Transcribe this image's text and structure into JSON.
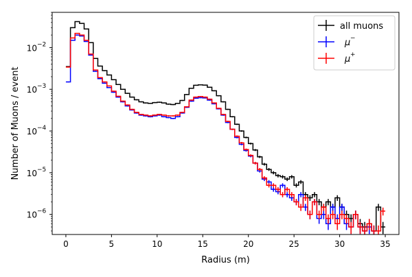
{
  "chart_data": {
    "type": "line",
    "subtype": "step-histogram-with-errorbars",
    "title": "",
    "xlabel": "Radius (m)",
    "ylabel": "Number of Muons / event",
    "xlim": [
      -1.5,
      36.5
    ],
    "ylim": [
      3.3e-07,
      0.07
    ],
    "yscale": "log",
    "grid": false,
    "legend_position": "top-right",
    "x_ticks": [
      0,
      5,
      10,
      15,
      20,
      25,
      30,
      35
    ],
    "x_tick_labels": [
      "0",
      "5",
      "10",
      "15",
      "20",
      "25",
      "30",
      "35"
    ],
    "y_ticks": [
      1e-06,
      1e-05,
      0.0001,
      0.001,
      0.01
    ],
    "y_tick_labels": [
      {
        "base": "10",
        "exp": "−6"
      },
      {
        "base": "10",
        "exp": "−5"
      },
      {
        "base": "10",
        "exp": "−4"
      },
      {
        "base": "10",
        "exp": "−3"
      },
      {
        "base": "10",
        "exp": "−2"
      }
    ],
    "bin_width": 0.5,
    "series": [
      {
        "name": "all muons",
        "legend_label": "all muons",
        "color": "#000000",
        "x": [
          0.0,
          0.5,
          1.0,
          1.5,
          2.0,
          2.5,
          3.0,
          3.5,
          4.0,
          4.5,
          5.0,
          5.5,
          6.0,
          6.5,
          7.0,
          7.5,
          8.0,
          8.5,
          9.0,
          9.5,
          10.0,
          10.5,
          11.0,
          11.5,
          12.0,
          12.5,
          13.0,
          13.5,
          14.0,
          14.5,
          15.0,
          15.5,
          16.0,
          16.5,
          17.0,
          17.5,
          18.0,
          18.5,
          19.0,
          19.5,
          20.0,
          20.5,
          21.0,
          21.5,
          22.0,
          22.5,
          23.0,
          23.5,
          24.0,
          24.5,
          25.0,
          25.5,
          26.0,
          26.5,
          27.0,
          27.5,
          28.0,
          28.5,
          29.0,
          29.5,
          30.0,
          30.5,
          31.0,
          31.5,
          32.0,
          32.5,
          33.0,
          33.5,
          34.0,
          34.5
        ],
        "values": [
          0.0035,
          0.03,
          0.042,
          0.038,
          0.028,
          0.0132,
          0.0055,
          0.0036,
          0.0028,
          0.0022,
          0.0017,
          0.0013,
          0.001,
          0.0008,
          0.00065,
          0.00056,
          0.0005,
          0.00047,
          0.00046,
          0.00048,
          0.00049,
          0.00047,
          0.00044,
          0.00043,
          0.00046,
          0.00054,
          0.00075,
          0.00106,
          0.00125,
          0.00128,
          0.00126,
          0.00112,
          0.00092,
          0.0007,
          0.0005,
          0.00033,
          0.00022,
          0.000145,
          0.0001,
          7e-05,
          5e-05,
          3.5e-05,
          2.4e-05,
          1.6e-05,
          1.2e-05,
          1e-05,
          8.5e-06,
          8e-06,
          7e-06,
          8e-06,
          5e-06,
          6e-06,
          3e-06,
          2.5e-06,
          3e-06,
          2e-06,
          1.5e-06,
          2e-06,
          1.5e-06,
          2.5e-06,
          1.5e-06,
          1e-06,
          8e-07,
          1e-06,
          6e-07,
          5e-07,
          6e-07,
          4e-07,
          1.5e-06,
          5e-07
        ]
      },
      {
        "name": "μ⁻",
        "legend_label": "μ",
        "legend_sup": "−",
        "color": "#0000ff",
        "x": [
          0.0,
          0.5,
          1.0,
          1.5,
          2.0,
          2.5,
          3.0,
          3.5,
          4.0,
          4.5,
          5.0,
          5.5,
          6.0,
          6.5,
          7.0,
          7.5,
          8.0,
          8.5,
          9.0,
          9.5,
          10.0,
          10.5,
          11.0,
          11.5,
          12.0,
          12.5,
          13.0,
          13.5,
          14.0,
          14.5,
          15.0,
          15.5,
          16.0,
          16.5,
          17.0,
          17.5,
          18.0,
          18.5,
          19.0,
          19.5,
          20.0,
          20.5,
          21.0,
          21.5,
          22.0,
          22.5,
          23.0,
          23.5,
          24.0,
          24.5,
          25.0,
          25.5,
          26.0,
          26.5,
          27.0,
          27.5,
          28.0,
          28.5,
          29.0,
          29.5,
          30.0,
          30.5,
          31.0,
          31.5,
          32.0,
          32.5,
          33.0,
          33.5
        ],
        "values": [
          0.0015,
          0.015,
          0.02,
          0.019,
          0.014,
          0.0066,
          0.0027,
          0.0018,
          0.0014,
          0.0011,
          0.00085,
          0.00065,
          0.0005,
          0.0004,
          0.00032,
          0.00027,
          0.00024,
          0.00023,
          0.00022,
          0.00023,
          0.00024,
          0.00022,
          0.00021,
          0.0002,
          0.00022,
          0.00027,
          0.00037,
          0.00052,
          0.00061,
          0.00063,
          0.00062,
          0.00055,
          0.00045,
          0.00034,
          0.00024,
          0.00016,
          0.00011,
          7e-05,
          4.8e-05,
          3.4e-05,
          2.5e-05,
          1.7e-05,
          1.1e-05,
          7e-06,
          6e-06,
          4e-06,
          3.5e-06,
          5e-06,
          3e-06,
          2.5e-06,
          2e-06,
          3e-06,
          1.5e-06,
          1e-06,
          2e-06,
          8e-07,
          1e-06,
          6e-07,
          1.5e-06,
          8e-07,
          1.5e-06,
          6e-07,
          5e-07,
          1e-06,
          5e-07,
          4e-07,
          5e-07,
          4e-07
        ]
      },
      {
        "name": "μ⁺",
        "legend_label": "μ",
        "legend_sup": "+",
        "color": "#ff0000",
        "x": [
          0.0,
          0.5,
          1.0,
          1.5,
          2.0,
          2.5,
          3.0,
          3.5,
          4.0,
          4.5,
          5.0,
          5.5,
          6.0,
          6.5,
          7.0,
          7.5,
          8.0,
          8.5,
          9.0,
          9.5,
          10.0,
          10.5,
          11.0,
          11.5,
          12.0,
          12.5,
          13.0,
          13.5,
          14.0,
          14.5,
          15.0,
          15.5,
          16.0,
          16.5,
          17.0,
          17.5,
          18.0,
          18.5,
          19.0,
          19.5,
          20.0,
          20.5,
          21.0,
          21.5,
          22.0,
          22.5,
          23.0,
          23.5,
          24.0,
          24.5,
          25.0,
          25.5,
          26.0,
          26.5,
          27.0,
          27.5,
          28.0,
          28.5,
          29.0,
          29.5,
          30.0,
          30.5,
          31.0,
          31.5,
          32.0,
          32.5,
          33.0,
          33.5,
          34.0,
          34.5
        ],
        "values": [
          0.0034,
          0.017,
          0.022,
          0.02,
          0.015,
          0.007,
          0.0029,
          0.0019,
          0.0015,
          0.0012,
          0.0009,
          0.00068,
          0.00052,
          0.00042,
          0.00033,
          0.00028,
          0.00025,
          0.00024,
          0.00023,
          0.00024,
          0.00025,
          0.00024,
          0.00023,
          0.00023,
          0.00024,
          0.00028,
          0.00038,
          0.00055,
          0.00065,
          0.00067,
          0.00065,
          0.00058,
          0.00047,
          0.00035,
          0.00025,
          0.00017,
          0.00011,
          7.5e-05,
          5.2e-05,
          3.6e-05,
          2.6e-05,
          1.7e-05,
          1.2e-05,
          7.5e-06,
          5e-06,
          5e-06,
          4e-06,
          3e-06,
          4e-06,
          3e-06,
          2e-06,
          1.5e-06,
          2.5e-06,
          1e-06,
          2e-06,
          1e-06,
          1.5e-06,
          8e-07,
          1e-06,
          6e-07,
          1e-06,
          8e-07,
          5e-07,
          1e-06,
          5e-07,
          4e-07,
          6e-07,
          4e-07,
          4e-07,
          1.2e-06
        ]
      }
    ]
  }
}
